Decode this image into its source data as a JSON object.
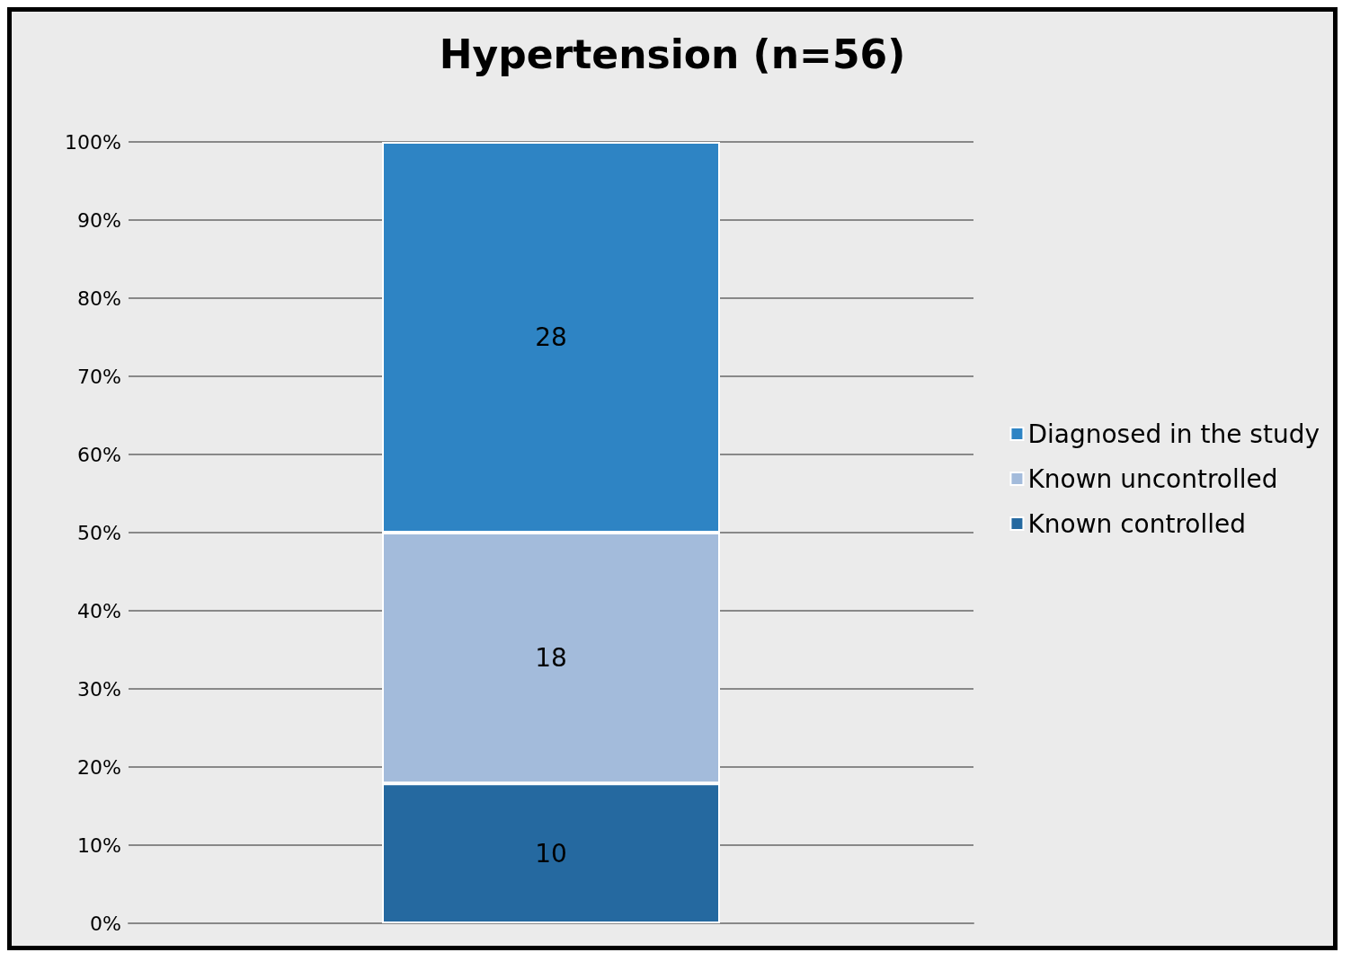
{
  "chart_data": {
    "type": "bar",
    "title": "Hypertension (n=56)",
    "categories": [
      null
    ],
    "stacked": true,
    "series": [
      {
        "name": "Known controlled",
        "color": "#2569a0",
        "values": [
          17.9
        ]
      },
      {
        "name": "Known uncontrolled",
        "color": "#a3bbdb",
        "values": [
          32.1
        ]
      },
      {
        "name": "Diagnosed in the study",
        "color": "#2e84c4",
        "values": [
          50
        ]
      }
    ],
    "annotations": [
      "10",
      "18",
      "28"
    ],
    "ylim": [
      0,
      100
    ],
    "yticks": [
      {
        "value": 0,
        "label": "0%"
      },
      {
        "value": 10,
        "label": "10%"
      },
      {
        "value": 20,
        "label": "20%"
      },
      {
        "value": 30,
        "label": "30%"
      },
      {
        "value": 40,
        "label": "40%"
      },
      {
        "value": 50,
        "label": "50%"
      },
      {
        "value": 60,
        "label": "60%"
      },
      {
        "value": 70,
        "label": "70%"
      },
      {
        "value": 80,
        "label": "80%"
      },
      {
        "value": 90,
        "label": "90%"
      },
      {
        "value": 100,
        "label": "100%"
      }
    ],
    "grid": "y",
    "legend": "right"
  }
}
